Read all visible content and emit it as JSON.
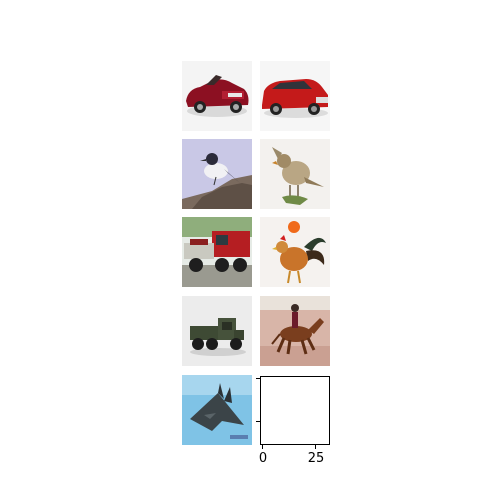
{
  "figure": {
    "thumbnails": [
      {
        "id": "car-red-convertible",
        "label": ""
      },
      {
        "id": "car-red-wagon",
        "label": ""
      },
      {
        "id": "bird-on-rock",
        "label": ""
      },
      {
        "id": "bird-perched",
        "label": ""
      },
      {
        "id": "truck-red",
        "label": ""
      },
      {
        "id": "rooster",
        "label": ""
      },
      {
        "id": "truck-military-green",
        "label": ""
      },
      {
        "id": "horse-rider",
        "label": ""
      },
      {
        "id": "stealth-airplane",
        "label": ""
      }
    ],
    "empty_axes": {
      "x_ticks": [
        "0",
        "25"
      ]
    }
  }
}
